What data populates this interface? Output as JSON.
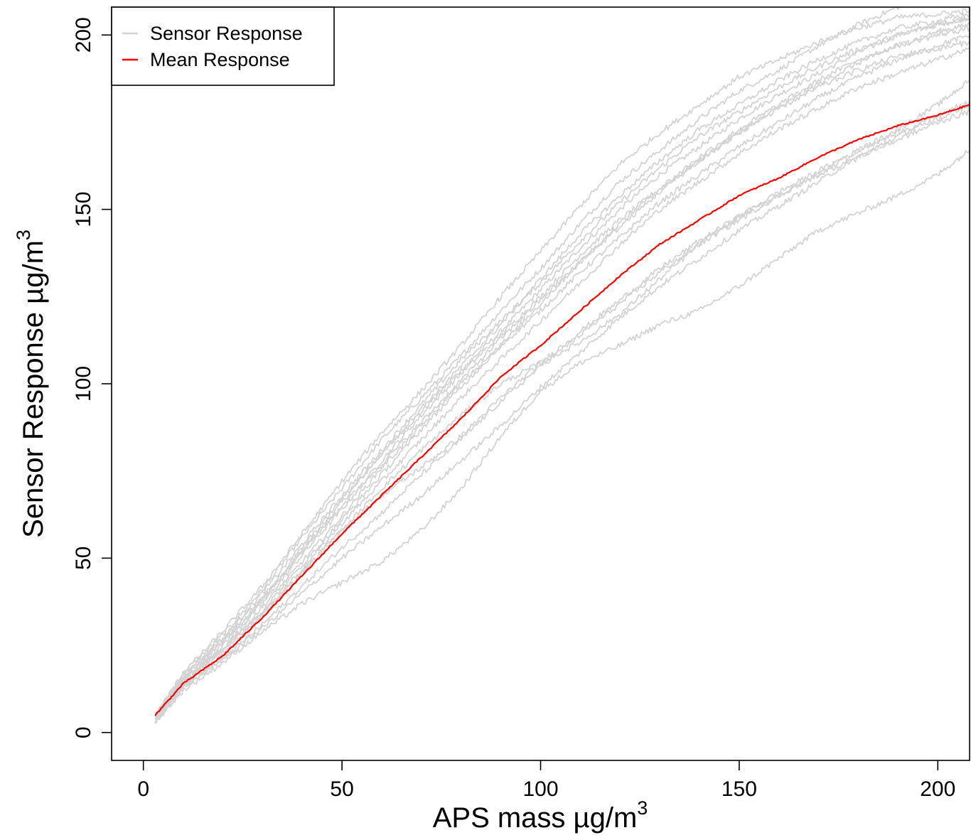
{
  "chart_data": {
    "type": "line",
    "title": "",
    "xlabel": "APS mass µg/m",
    "xlabel_sup": "3",
    "ylabel": "Sensor Response µg/m",
    "ylabel_sup": "3",
    "xlim": [
      -8,
      208
    ],
    "ylim": [
      -8,
      208
    ],
    "xticks": [
      0,
      50,
      100,
      150,
      200
    ],
    "yticks": [
      0,
      50,
      100,
      150,
      200
    ],
    "grid": false,
    "legend": {
      "position": "top-left",
      "entries": [
        {
          "label": "Sensor Response",
          "color": "#d3d3d3"
        },
        {
          "label": "Mean Response",
          "color": "#ff0000"
        }
      ]
    },
    "colors": {
      "sensor": "#d3d3d3",
      "mean": "#ff0000"
    },
    "x": [
      3,
      10,
      20,
      30,
      40,
      50,
      60,
      70,
      80,
      90,
      100,
      110,
      120,
      130,
      140,
      150,
      160,
      170,
      180,
      190,
      200,
      208
    ],
    "series": [
      {
        "role": "mean",
        "values": [
          5,
          14,
          22,
          33,
          45,
          57,
          68,
          79,
          90,
          102,
          111,
          121,
          131,
          140,
          147,
          154,
          159,
          165,
          170,
          174,
          177,
          180
        ]
      },
      {
        "role": "sensor",
        "values": [
          4,
          16,
          26,
          38,
          52,
          66,
          80,
          92,
          104,
          115,
          127,
          139,
          150,
          160,
          168,
          176,
          183,
          189,
          195,
          200,
          203,
          205
        ]
      },
      {
        "role": "sensor",
        "values": [
          4,
          17,
          28,
          41,
          56,
          70,
          84,
          96,
          108,
          121,
          133,
          146,
          158,
          167,
          176,
          184,
          190,
          197,
          203,
          208,
          212,
          214
        ]
      },
      {
        "role": "sensor",
        "values": [
          3,
          15,
          25,
          37,
          51,
          64,
          78,
          91,
          103,
          114,
          125,
          137,
          147,
          156,
          164,
          172,
          179,
          186,
          192,
          197,
          201,
          203
        ]
      },
      {
        "role": "sensor",
        "values": [
          4,
          16,
          27,
          40,
          54,
          68,
          81,
          94,
          107,
          118,
          129,
          141,
          152,
          162,
          171,
          178,
          185,
          191,
          196,
          200,
          203,
          205
        ]
      },
      {
        "role": "sensor",
        "values": [
          3,
          14,
          24,
          36,
          49,
          62,
          76,
          88,
          100,
          111,
          121,
          132,
          142,
          152,
          160,
          168,
          175,
          182,
          188,
          193,
          197,
          200
        ]
      },
      {
        "role": "sensor",
        "values": [
          5,
          17,
          29,
          42,
          57,
          72,
          86,
          98,
          111,
          125,
          138,
          151,
          163,
          172,
          180,
          188,
          193,
          198,
          202,
          205,
          206,
          207
        ]
      },
      {
        "role": "sensor",
        "values": [
          4,
          15,
          26,
          38,
          53,
          67,
          80,
          93,
          105,
          117,
          130,
          143,
          154,
          164,
          173,
          180,
          187,
          193,
          198,
          202,
          204,
          206
        ]
      },
      {
        "role": "sensor",
        "values": [
          3,
          13,
          21,
          30,
          40,
          50,
          59,
          68,
          78,
          88,
          99,
          109,
          119,
          128,
          136,
          144,
          151,
          158,
          165,
          171,
          177,
          181
        ]
      },
      {
        "role": "sensor",
        "values": [
          4,
          14,
          23,
          34,
          47,
          60,
          72,
          84,
          96,
          107,
          118,
          129,
          140,
          150,
          158,
          166,
          173,
          179,
          185,
          189,
          193,
          196
        ]
      },
      {
        "role": "sensor",
        "values": [
          3,
          13,
          22,
          33,
          46,
          58,
          70,
          81,
          91,
          100,
          106,
          112,
          120,
          130,
          140,
          148,
          154,
          160,
          165,
          170,
          175,
          178
        ]
      },
      {
        "role": "sensor",
        "values": [
          5,
          15,
          24,
          34,
          46,
          58,
          68,
          76,
          85,
          96,
          106,
          115,
          124,
          133,
          141,
          148,
          155,
          161,
          167,
          172,
          176,
          180
        ]
      },
      {
        "role": "sensor",
        "values": [
          4,
          13,
          21,
          31,
          42,
          53,
          63,
          74,
          84,
          95,
          105,
          114,
          123,
          132,
          140,
          147,
          154,
          160,
          167,
          173,
          180,
          187
        ]
      },
      {
        "role": "sensor",
        "values": [
          3,
          12,
          20,
          29,
          37,
          43,
          49,
          58,
          70,
          85,
          98,
          106,
          111,
          117,
          121,
          128,
          136,
          144,
          149,
          154,
          160,
          167
        ]
      },
      {
        "role": "sensor",
        "values": [
          4,
          14,
          24,
          35,
          48,
          61,
          74,
          87,
          99,
          111,
          123,
          135,
          146,
          156,
          165,
          173,
          180,
          187,
          193,
          197,
          200,
          202
        ]
      },
      {
        "role": "sensor",
        "values": [
          5,
          16,
          27,
          39,
          52,
          65,
          77,
          89,
          101,
          113,
          124,
          135,
          145,
          155,
          164,
          172,
          179,
          185,
          190,
          194,
          196,
          198
        ]
      }
    ]
  }
}
